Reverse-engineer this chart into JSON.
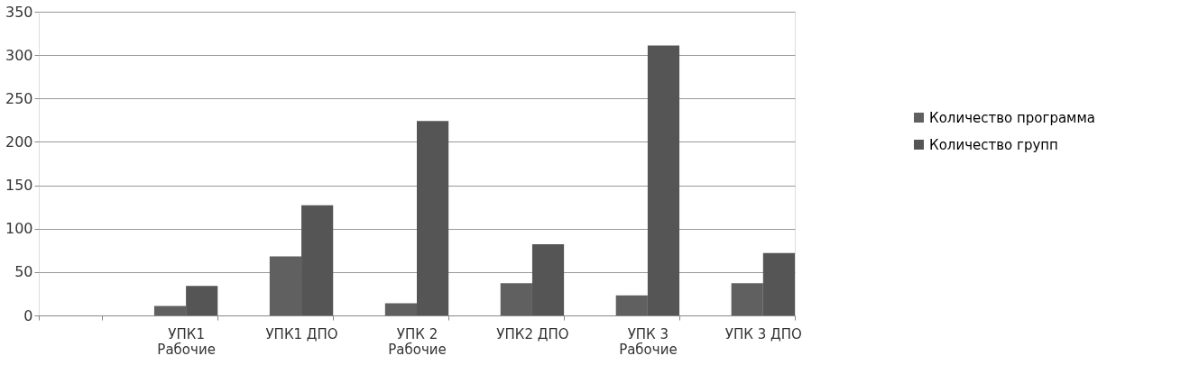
{
  "chart_data": {
    "type": "bar",
    "categories": [
      null,
      "УПК1\nРабочие",
      "УПК1 ДПО",
      "УПК 2\nРабочие",
      "УПК2  ДПО",
      "УПК 3\nРабочие",
      "УПК 3 ДПО"
    ],
    "series": [
      {
        "name": "Количество программа",
        "color": "#606060",
        "values": [
          null,
          11,
          68,
          14,
          37,
          23,
          37
        ]
      },
      {
        "name": "Количество групп",
        "color": "#555555",
        "values": [
          null,
          34,
          127,
          224,
          82,
          311,
          72
        ]
      }
    ],
    "ylim": [
      0,
      350
    ],
    "yticks": [
      0,
      50,
      100,
      150,
      200,
      250,
      300,
      350
    ],
    "grid": "y",
    "legend": "right"
  }
}
